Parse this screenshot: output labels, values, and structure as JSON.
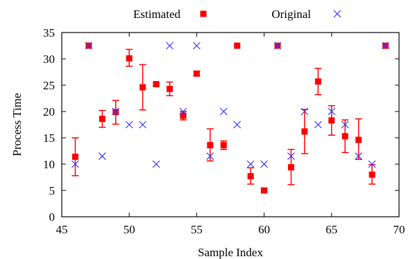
{
  "chart_data": {
    "type": "scatter",
    "title": "",
    "xlabel": "Sample Index",
    "ylabel": "Process Time",
    "xlim": [
      45,
      70
    ],
    "ylim": [
      0,
      35
    ],
    "xticks": [
      "45",
      "50",
      "55",
      "60",
      "65",
      "70"
    ],
    "yticks": [
      "0",
      "5",
      "10",
      "15",
      "20",
      "25",
      "30",
      "35"
    ],
    "grid": false,
    "legend_position": "top",
    "series": [
      {
        "name": "Estimated",
        "marker": "square",
        "color": "#ff0000",
        "error_bars": true,
        "points": [
          {
            "x": 46,
            "y": 11.4,
            "lo": 7.8,
            "hi": 15.0
          },
          {
            "x": 47,
            "y": 32.5,
            "lo": 32.5,
            "hi": 32.5
          },
          {
            "x": 48,
            "y": 18.6,
            "lo": 17.0,
            "hi": 20.2
          },
          {
            "x": 49,
            "y": 19.9,
            "lo": 17.6,
            "hi": 22.1
          },
          {
            "x": 50,
            "y": 30.1,
            "lo": 28.6,
            "hi": 31.8
          },
          {
            "x": 51,
            "y": 24.6,
            "lo": 20.3,
            "hi": 28.9
          },
          {
            "x": 52,
            "y": 25.2,
            "lo": 24.9,
            "hi": 25.4
          },
          {
            "x": 53,
            "y": 24.3,
            "lo": 23.0,
            "hi": 25.6
          },
          {
            "x": 54,
            "y": 19.2,
            "lo": 18.4,
            "hi": 20.0
          },
          {
            "x": 55,
            "y": 27.2,
            "lo": 26.8,
            "hi": 27.6
          },
          {
            "x": 56,
            "y": 13.6,
            "lo": 10.6,
            "hi": 16.7
          },
          {
            "x": 57,
            "y": 13.6,
            "lo": 12.8,
            "hi": 14.4
          },
          {
            "x": 58,
            "y": 32.5,
            "lo": 32.5,
            "hi": 32.5
          },
          {
            "x": 59,
            "y": 7.7,
            "lo": 6.2,
            "hi": 9.3
          },
          {
            "x": 60,
            "y": 5.0,
            "lo": 4.7,
            "hi": 5.3
          },
          {
            "x": 61,
            "y": 32.5,
            "lo": 32.5,
            "hi": 32.5
          },
          {
            "x": 62,
            "y": 9.4,
            "lo": 6.1,
            "hi": 12.8
          },
          {
            "x": 63,
            "y": 16.2,
            "lo": 12.0,
            "hi": 20.4
          },
          {
            "x": 64,
            "y": 25.7,
            "lo": 23.2,
            "hi": 28.2
          },
          {
            "x": 65,
            "y": 18.3,
            "lo": 15.5,
            "hi": 21.1
          },
          {
            "x": 66,
            "y": 15.3,
            "lo": 12.2,
            "hi": 18.4
          },
          {
            "x": 67,
            "y": 14.6,
            "lo": 10.9,
            "hi": 18.6
          },
          {
            "x": 68,
            "y": 8.0,
            "lo": 6.2,
            "hi": 9.9
          },
          {
            "x": 69,
            "y": 32.5,
            "lo": 32.5,
            "hi": 32.5
          }
        ]
      },
      {
        "name": "Original",
        "marker": "x",
        "color": "#3333ff",
        "points": [
          {
            "x": 46,
            "y": 10.0
          },
          {
            "x": 47,
            "y": 32.5
          },
          {
            "x": 48,
            "y": 11.5
          },
          {
            "x": 49,
            "y": 20.0
          },
          {
            "x": 50,
            "y": 17.5
          },
          {
            "x": 51,
            "y": 17.5
          },
          {
            "x": 52,
            "y": 10.0
          },
          {
            "x": 53,
            "y": 32.5
          },
          {
            "x": 54,
            "y": 20.0
          },
          {
            "x": 55,
            "y": 32.5
          },
          {
            "x": 56,
            "y": 11.5
          },
          {
            "x": 57,
            "y": 20.0
          },
          {
            "x": 58,
            "y": 17.5
          },
          {
            "x": 59,
            "y": 10.0
          },
          {
            "x": 60,
            "y": 10.0
          },
          {
            "x": 61,
            "y": 32.5
          },
          {
            "x": 62,
            "y": 11.5
          },
          {
            "x": 63,
            "y": 20.0
          },
          {
            "x": 64,
            "y": 17.5
          },
          {
            "x": 65,
            "y": 20.0
          },
          {
            "x": 66,
            "y": 17.5
          },
          {
            "x": 67,
            "y": 11.5
          },
          {
            "x": 68,
            "y": 10.0
          },
          {
            "x": 69,
            "y": 32.5
          }
        ]
      }
    ]
  }
}
